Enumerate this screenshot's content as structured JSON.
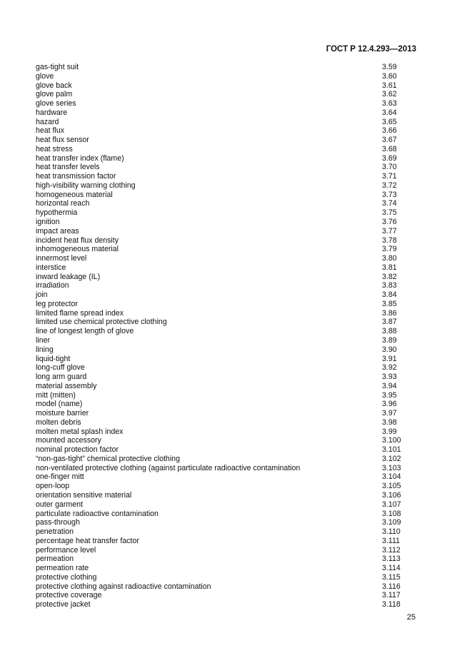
{
  "header": {
    "standard": "ГОСТ Р 12.4.293—2013"
  },
  "page_number": "25",
  "entries": [
    {
      "term": "gas-tight suit",
      "ref": "3.59"
    },
    {
      "term": "glove",
      "ref": "3.60"
    },
    {
      "term": "glove back",
      "ref": "3.61"
    },
    {
      "term": "glove palm",
      "ref": "3.62"
    },
    {
      "term": "glove series",
      "ref": "3.63"
    },
    {
      "term": "hardware",
      "ref": "3.64"
    },
    {
      "term": "hazard",
      "ref": "3.65"
    },
    {
      "term": "heat flux",
      "ref": "3.66"
    },
    {
      "term": "heat flux sensor",
      "ref": "3.67"
    },
    {
      "term": "heat stress",
      "ref": "3.68"
    },
    {
      "term": "heat transfer index (flame)",
      "ref": "3.69"
    },
    {
      "term": "heat transfer levels",
      "ref": "3.70"
    },
    {
      "term": "heat transmission factor",
      "ref": "3.71"
    },
    {
      "term": "high-visibility warning clothing",
      "ref": "3.72"
    },
    {
      "term": "homogeneous material",
      "ref": "3.73"
    },
    {
      "term": "horizontal reach",
      "ref": "3.74"
    },
    {
      "term": "hypothermia",
      "ref": "3.75"
    },
    {
      "term": "ignition",
      "ref": "3.76"
    },
    {
      "term": "impact areas",
      "ref": "3.77"
    },
    {
      "term": "incident heat flux density",
      "ref": "3.78"
    },
    {
      "term": "inhomogeneous material",
      "ref": "3.79"
    },
    {
      "term": "innermost level",
      "ref": "3.80"
    },
    {
      "term": "interstice",
      "ref": "3.81"
    },
    {
      "term": "inward leakage (IL)",
      "ref": "3.82"
    },
    {
      "term": "irradiation",
      "ref": "3.83"
    },
    {
      "term": "join",
      "ref": "3.84"
    },
    {
      "term": "leg protector",
      "ref": "3.85"
    },
    {
      "term": "limited flame spread index",
      "ref": "3.86"
    },
    {
      "term": "limited use chemical protective clothing",
      "ref": "3.87"
    },
    {
      "term": "line of longest length of glove",
      "ref": "3.88"
    },
    {
      "term": "liner",
      "ref": "3.89"
    },
    {
      "term": "lining",
      "ref": "3.90"
    },
    {
      "term": "liquid-tight",
      "ref": "3.91"
    },
    {
      "term": "long-cuff glove",
      "ref": "3.92"
    },
    {
      "term": "long arm guard",
      "ref": "3.93"
    },
    {
      "term": "material assembly",
      "ref": "3.94"
    },
    {
      "term": "mitt (mitten)",
      "ref": "3.95"
    },
    {
      "term": "model (name)",
      "ref": "3.96"
    },
    {
      "term": "moisture barrier",
      "ref": "3.97"
    },
    {
      "term": "molten debris",
      "ref": "3.98"
    },
    {
      "term": "molten metal splash index",
      "ref": "3.99"
    },
    {
      "term": "mounted accessory",
      "ref": "3.100"
    },
    {
      "term": "nominal protection factor",
      "ref": "3.101"
    },
    {
      "term": "“non-gas-tight” chemical protective clothing",
      "ref": "3.102"
    },
    {
      "term": "non-ventilated protective clothing (against particulate radioactive contamination",
      "ref": "3.103"
    },
    {
      "term": "one-finger mitt",
      "ref": "3.104"
    },
    {
      "term": "open-loop",
      "ref": "3.105"
    },
    {
      "term": "orientation sensitive material",
      "ref": "3.106"
    },
    {
      "term": "outer garment",
      "ref": "3.107"
    },
    {
      "term": "particulate radioactive contamination",
      "ref": "3.108"
    },
    {
      "term": "pass-through",
      "ref": "3.109"
    },
    {
      "term": "penetration",
      "ref": "3.110"
    },
    {
      "term": "percentage heat transfer factor",
      "ref": "3.111"
    },
    {
      "term": "performance level",
      "ref": "3.112"
    },
    {
      "term": "permeation",
      "ref": "3.113"
    },
    {
      "term": "permeation rate",
      "ref": "3.114"
    },
    {
      "term": "protective clothing",
      "ref": "3.115"
    },
    {
      "term": "protective clothing against radioactive contamination",
      "ref": "3.116"
    },
    {
      "term": "protective coverage",
      "ref": "3.117"
    },
    {
      "term": "protective jacket",
      "ref": "3.118"
    }
  ]
}
